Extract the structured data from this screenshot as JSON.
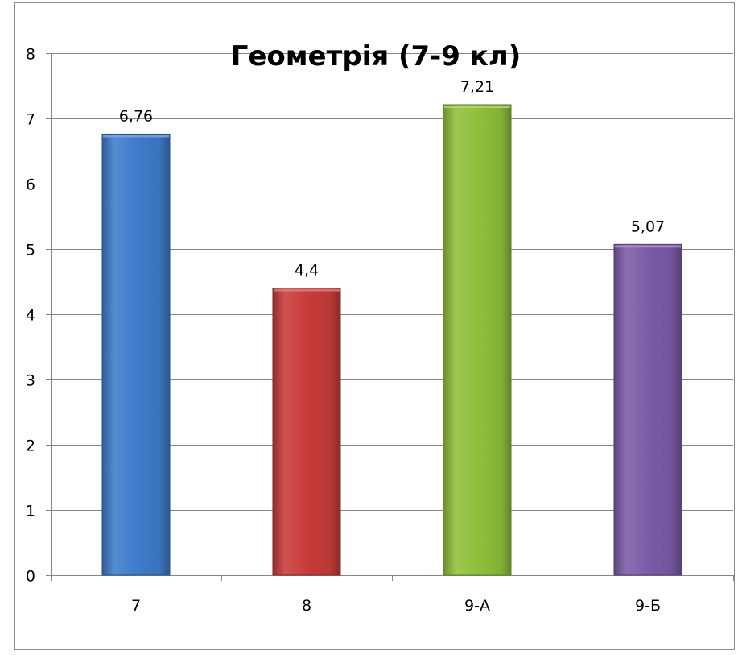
{
  "chart_data": {
    "type": "bar",
    "title": "Геометрія (7-9 кл)",
    "categories": [
      "7",
      "8",
      "9-А",
      "9-Б"
    ],
    "values": [
      6.76,
      4.4,
      7.21,
      5.07
    ],
    "value_labels": [
      "6,76",
      "4,4",
      "7,21",
      "5,07"
    ],
    "yticks": [
      "0",
      "1",
      "2",
      "3",
      "4",
      "5",
      "6",
      "7",
      "8"
    ],
    "ylim": [
      0,
      8
    ],
    "grid": true,
    "legend": "none",
    "colors": [
      "#3e7ccc",
      "#c83c3a",
      "#8fc03a",
      "#7c5ba8"
    ]
  }
}
